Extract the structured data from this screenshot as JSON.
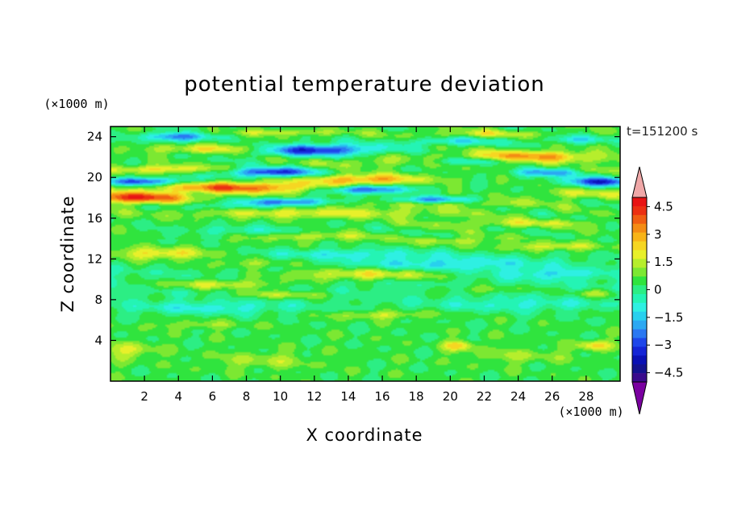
{
  "chart_data": {
    "type": "heatmap",
    "title": "potential temperature deviation",
    "xlabel": "X coordinate",
    "ylabel": "Z coordinate",
    "x_unit": "(×1000 m)",
    "y_unit": "(×1000 m)",
    "time_label": "t=151200 s",
    "xlim": [
      0,
      30
    ],
    "ylim": [
      0,
      25
    ],
    "x_ticks": [
      2,
      4,
      6,
      8,
      10,
      12,
      14,
      16,
      18,
      20,
      22,
      24,
      26,
      28
    ],
    "y_ticks": [
      4,
      8,
      12,
      16,
      20,
      24
    ],
    "colorbar": {
      "levels": [
        -5.5,
        -5,
        -4.5,
        -4,
        -3.5,
        -3,
        -2.5,
        -2,
        -1.5,
        -1,
        -0.5,
        0,
        0.5,
        1,
        1.5,
        2,
        2.5,
        3,
        3.5,
        4,
        4.5,
        5,
        5.5
      ],
      "tick_values": [
        4.5,
        3,
        1.5,
        0,
        -1.5,
        -3,
        -4.5
      ],
      "tick_labels": [
        "4.5",
        "3",
        "1.5",
        "0",
        "−1.5",
        "−3",
        "−4.5"
      ],
      "colors": [
        "#7a00a0",
        "#3a0a8c",
        "#14128f",
        "#0a10b4",
        "#1424d6",
        "#1e46ea",
        "#2a78f2",
        "#2ca8f2",
        "#28d0ee",
        "#2ef0e2",
        "#24f4b4",
        "#2cee84",
        "#30e43e",
        "#7ce832",
        "#b6ee2c",
        "#e8f02a",
        "#f6d622",
        "#f8b418",
        "#f48c14",
        "#f05e12",
        "#ec3012",
        "#e81414",
        "#f0a8a8"
      ],
      "extend": "both"
    },
    "features": [
      {
        "x": 7.5,
        "z": 19,
        "sx": 5,
        "sz": 0.55,
        "amp": 3.5
      },
      {
        "x": 15,
        "z": 19.8,
        "sx": 3.5,
        "sz": 0.5,
        "amp": 2.8
      },
      {
        "x": 1.5,
        "z": 18,
        "sx": 3,
        "sz": 0.55,
        "amp": 4.2
      },
      {
        "x": 3,
        "z": 20.8,
        "sx": 3,
        "sz": 0.4,
        "amp": 2.0
      },
      {
        "x": 6.5,
        "z": 22.8,
        "sx": 4,
        "sz": 0.45,
        "amp": 1.8
      },
      {
        "x": 16,
        "z": 21.5,
        "sx": 4,
        "sz": 0.5,
        "amp": 1.0
      },
      {
        "x": 24.5,
        "z": 22,
        "sx": 4,
        "sz": 0.6,
        "amp": 3.0
      },
      {
        "x": 22,
        "z": 24.3,
        "sx": 4,
        "sz": 0.35,
        "amp": 1.2
      },
      {
        "x": 10,
        "z": 24.4,
        "sx": 4,
        "sz": 0.3,
        "amp": 1.2
      },
      {
        "x": 28,
        "z": 18.4,
        "sx": 3,
        "sz": 0.45,
        "amp": 1.2
      },
      {
        "x": 28.5,
        "z": 20.7,
        "sx": 2,
        "sz": 0.35,
        "amp": 1.2
      },
      {
        "x": 20,
        "z": 17.5,
        "sx": 6,
        "sz": 0.45,
        "amp": 1.0
      },
      {
        "x": 12,
        "z": 16.5,
        "sx": 8,
        "sz": 0.5,
        "amp": 1.5
      },
      {
        "x": 24,
        "z": 15.5,
        "sx": 5,
        "sz": 0.4,
        "amp": 1.2
      },
      {
        "x": 12,
        "z": 14.2,
        "sx": 3,
        "sz": 0.4,
        "amp": 1.4
      },
      {
        "x": 20,
        "z": 13.8,
        "sx": 3,
        "sz": 0.4,
        "amp": 1.0
      },
      {
        "x": 26,
        "z": 13.2,
        "sx": 3,
        "sz": 0.4,
        "amp": 1.5
      },
      {
        "x": 3,
        "z": 12.5,
        "sx": 3,
        "sz": 0.6,
        "amp": 2.0
      },
      {
        "x": 8,
        "z": 11.5,
        "sx": 3,
        "sz": 0.45,
        "amp": 1.0
      },
      {
        "x": 15,
        "z": 10.5,
        "sx": 5,
        "sz": 0.6,
        "amp": 2.2
      },
      {
        "x": 6.5,
        "z": 9.5,
        "sx": 4,
        "sz": 0.5,
        "amp": 1.8
      },
      {
        "x": 10,
        "z": 8.5,
        "sx": 3,
        "sz": 0.4,
        "amp": 1.4
      },
      {
        "x": 22,
        "z": 9,
        "sx": 3,
        "sz": 0.4,
        "amp": 1.0
      },
      {
        "x": 28.5,
        "z": 8.6,
        "sx": 1.5,
        "sz": 0.4,
        "amp": 1.2
      },
      {
        "x": 16,
        "z": 6.5,
        "sx": 3,
        "sz": 0.4,
        "amp": 1.3
      },
      {
        "x": 5,
        "z": 5.5,
        "sx": 3,
        "sz": 0.4,
        "amp": 0.8
      },
      {
        "x": 20.5,
        "z": 3.5,
        "sx": 0.9,
        "sz": 0.5,
        "amp": 2.0
      },
      {
        "x": 28.5,
        "z": 3.5,
        "sx": 1.0,
        "sz": 0.5,
        "amp": 2.0
      },
      {
        "x": 1,
        "z": 3,
        "sx": 1.5,
        "sz": 0.8,
        "amp": 1.4
      },
      {
        "x": 9,
        "z": 2,
        "sx": 3,
        "sz": 0.8,
        "amp": 0.9
      },
      {
        "x": 24,
        "z": 2.5,
        "sx": 3,
        "sz": 0.7,
        "amp": 0.8
      },
      {
        "x": 9.5,
        "z": 20.5,
        "sx": 2.5,
        "sz": 0.45,
        "amp": -4.0
      },
      {
        "x": 12,
        "z": 22.7,
        "sx": 3.5,
        "sz": 0.55,
        "amp": -4.2
      },
      {
        "x": 2,
        "z": 19.6,
        "sx": 2.5,
        "sz": 0.4,
        "amp": -3.5
      },
      {
        "x": 15,
        "z": 18.8,
        "sx": 2.5,
        "sz": 0.4,
        "amp": -3.5
      },
      {
        "x": 10.5,
        "z": 17.6,
        "sx": 2.5,
        "sz": 0.35,
        "amp": -3.0
      },
      {
        "x": 19,
        "z": 17.8,
        "sx": 2.5,
        "sz": 0.35,
        "amp": -3.0
      },
      {
        "x": 4,
        "z": 24,
        "sx": 2,
        "sz": 0.45,
        "amp": -3.0
      },
      {
        "x": 26,
        "z": 20.5,
        "sx": 2,
        "sz": 0.4,
        "amp": -3.0
      },
      {
        "x": 29,
        "z": 19.6,
        "sx": 2,
        "sz": 0.45,
        "amp": -4.0
      },
      {
        "x": 27.5,
        "z": 23.7,
        "sx": 2,
        "sz": 0.4,
        "amp": -1.5
      },
      {
        "x": 20,
        "z": 23.5,
        "sx": 3,
        "sz": 0.4,
        "amp": -1.5
      },
      {
        "x": 21,
        "z": 21.6,
        "sx": 3,
        "sz": 0.4,
        "amp": -2.0
      },
      {
        "x": 7,
        "z": 17.2,
        "sx": 3,
        "sz": 0.4,
        "amp": -1.0
      },
      {
        "x": 20,
        "z": 11.5,
        "sx": 6,
        "sz": 0.8,
        "amp": -1.5
      },
      {
        "x": 6,
        "z": 7.2,
        "sx": 5,
        "sz": 0.6,
        "amp": -1.2
      },
      {
        "x": 24,
        "z": 7.5,
        "sx": 5,
        "sz": 0.6,
        "amp": -1.0
      },
      {
        "x": 14,
        "z": 12.5,
        "sx": 5,
        "sz": 0.5,
        "amp": -1.2
      },
      {
        "x": 26,
        "z": 10.5,
        "sx": 3,
        "sz": 0.5,
        "amp": -1.2
      },
      {
        "x": 8,
        "z": 14.8,
        "sx": 4,
        "sz": 0.5,
        "amp": -0.9
      }
    ]
  }
}
